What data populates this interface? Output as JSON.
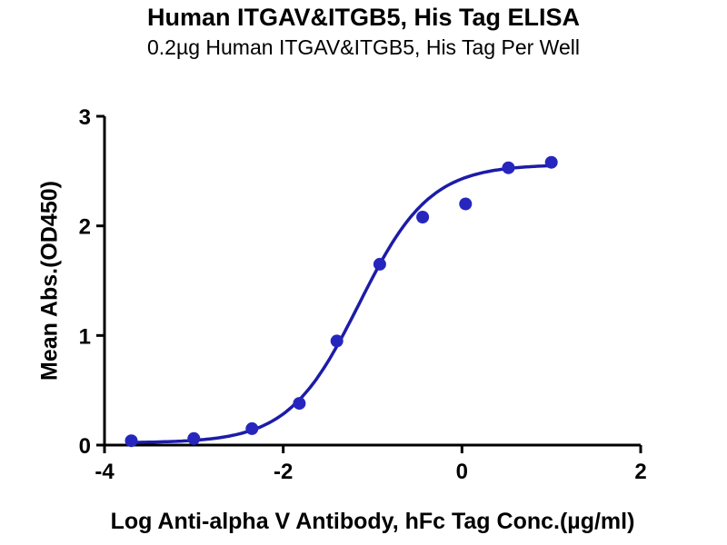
{
  "title": "Human ITGAV&ITGB5, His Tag ELISA",
  "subtitle": "0.2µg Human ITGAV&ITGB5, His Tag Per Well",
  "chart_data": {
    "type": "scatter",
    "title": "Human ITGAV&ITGB5, His Tag ELISA",
    "subtitle": "0.2µg Human ITGAV&ITGB5, His Tag Per Well",
    "xlabel": "Log Anti-alpha V Antibody, hFc Tag Conc.(µg/ml)",
    "ylabel": "Mean Abs.(OD450)",
    "xlim": [
      -4,
      2
    ],
    "ylim": [
      0,
      3
    ],
    "x_ticks": [
      -4,
      -2,
      0,
      2
    ],
    "y_ticks": [
      0,
      1,
      2,
      3
    ],
    "grid": false,
    "legend": "none",
    "series": [
      {
        "name": "Anti-alpha V Antibody, hFc Tag",
        "x": [
          -3.7,
          -3.0,
          -2.35,
          -1.82,
          -1.4,
          -0.92,
          -0.44,
          0.04,
          0.52,
          1.0
        ],
        "y": [
          0.04,
          0.06,
          0.15,
          0.38,
          0.95,
          1.65,
          2.08,
          2.2,
          2.53,
          2.58
        ]
      }
    ],
    "fit": {
      "model": "4PL-sigmoid",
      "bottom": 0.02,
      "top": 2.56,
      "logEC50": -1.15,
      "hill": 1.1
    },
    "colors": {
      "points": "#2626BE",
      "curve": "#1C1CA8",
      "axis": "#000000"
    }
  }
}
